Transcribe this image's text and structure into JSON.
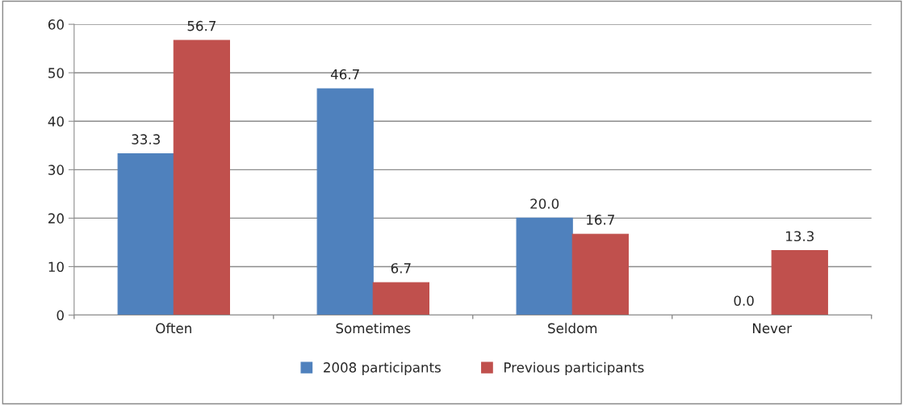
{
  "chart_data": {
    "type": "bar",
    "categories": [
      "Often",
      "Sometimes",
      "Seldom",
      "Never"
    ],
    "series": [
      {
        "name": "2008 participants",
        "color": "#4f81bd",
        "values": [
          33.3,
          46.7,
          20.0,
          0.0
        ],
        "value_labels": [
          "33.3",
          "46.7",
          "20.0",
          "0.0"
        ]
      },
      {
        "name": "Previous participants",
        "color": "#c0504d",
        "values": [
          56.7,
          6.7,
          16.7,
          13.3
        ],
        "value_labels": [
          "56.7",
          "6.7",
          "16.7",
          "13.3"
        ]
      }
    ],
    "ylim": [
      0,
      60
    ],
    "yticks": [
      0,
      10,
      20,
      30,
      40,
      50,
      60
    ],
    "grid": "y",
    "legend": "bottom"
  }
}
